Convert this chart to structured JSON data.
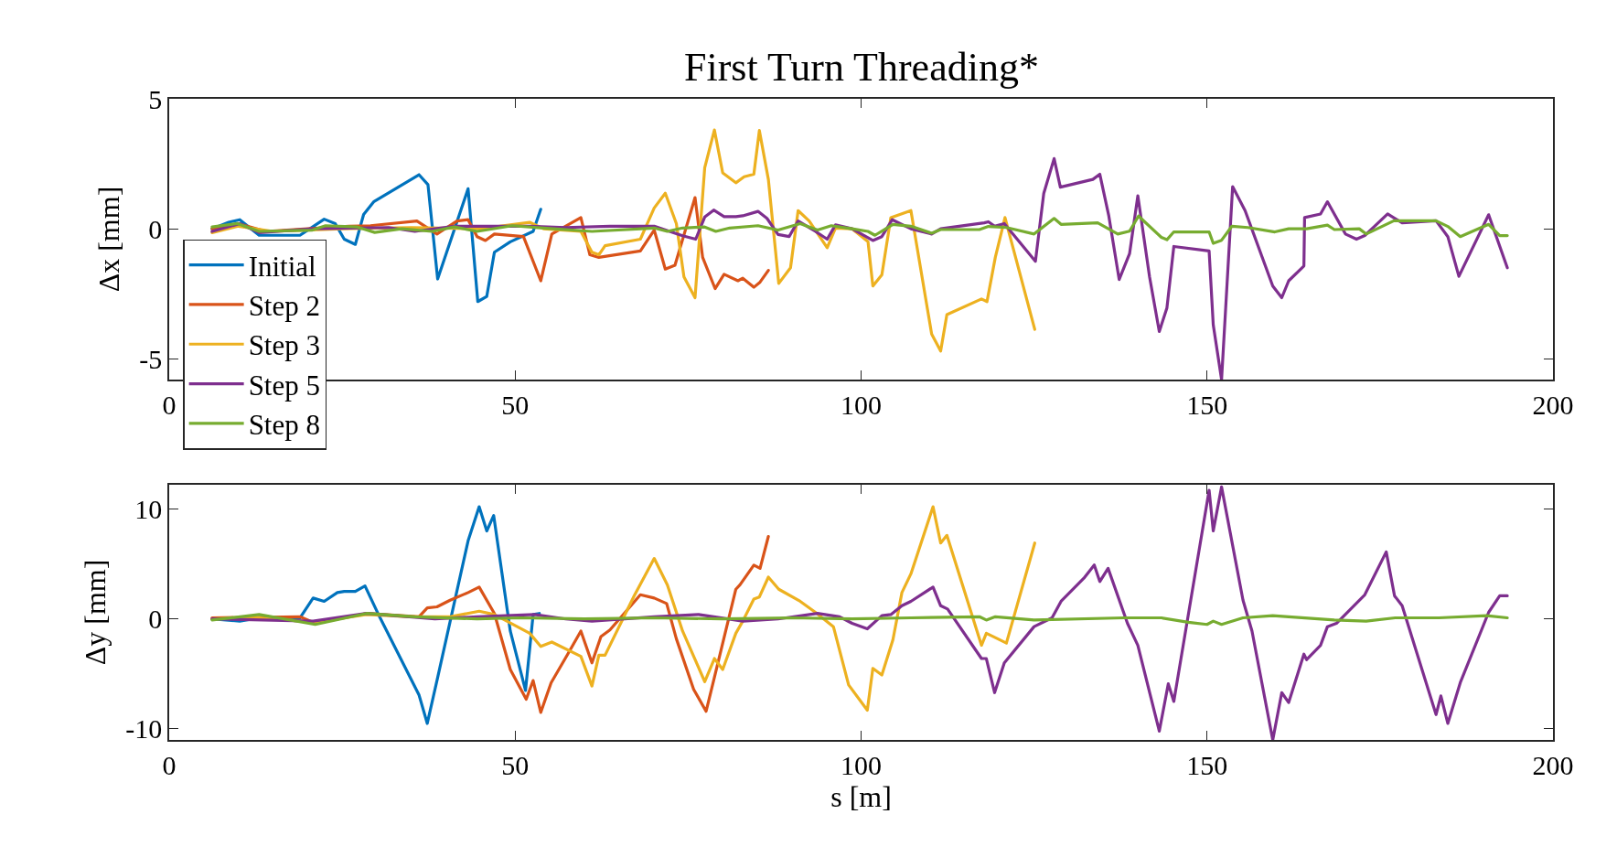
{
  "chart_data": [
    {
      "type": "line",
      "title": "First Turn Threading*",
      "ylabel": "Δx [mm]",
      "xlim": [
        0,
        200
      ],
      "xticks": [
        0,
        50,
        100,
        150,
        200
      ],
      "ylim": [
        -5.8,
        5
      ],
      "yticks": [
        -5,
        0,
        5
      ],
      "legend": "bottom left",
      "marker": "none",
      "line_style": "solid",
      "series": [
        {
          "name": "Initial",
          "color": "#0072bd",
          "x": [
            6.2,
            8.6,
            10.2,
            13,
            18.9,
            22.4,
            24,
            25.3,
            26.9,
            28.1,
            29.6,
            36.1,
            37.4,
            38.8,
            43.2,
            44.6,
            45.9,
            47,
            49.3,
            52.6,
            53.7
          ],
          "values": [
            0,
            0.25,
            0.35,
            -0.25,
            -0.25,
            0.37,
            0.2,
            -0.4,
            -0.6,
            0.55,
            1.05,
            2.08,
            1.7,
            -1.93,
            1.54,
            -2.8,
            -2.6,
            -0.9,
            -0.5,
            -0.1,
            0.75
          ]
        },
        {
          "name": "Step 2",
          "color": "#d95319",
          "x": [
            6.2,
            10,
            14,
            20,
            26,
            29.1,
            35.8,
            38.7,
            41.6,
            43.2,
            44.5,
            45.7,
            47,
            51.2,
            53.7,
            55.3,
            59.5,
            60.8,
            62.1,
            68.1,
            70.1,
            71.7,
            73.1,
            76,
            77.1,
            78.9,
            80.2,
            82.2,
            82.9,
            84.5,
            85.4,
            86.6
          ],
          "values": [
            0,
            0.2,
            -0.1,
            0,
            0.1,
            0.12,
            0.3,
            -0.2,
            0.3,
            0.35,
            -0.3,
            -0.45,
            -0.2,
            -0.3,
            -2,
            -0.2,
            0.43,
            -1,
            -1.1,
            -0.85,
            -0.05,
            -1.55,
            -1.4,
            1.2,
            -1.1,
            -2.3,
            -1.75,
            -2,
            -1.9,
            -2.25,
            -2.05,
            -1.6
          ]
        },
        {
          "name": "Step 3",
          "color": "#edb120",
          "x": [
            6.2,
            10,
            15,
            25,
            35,
            45,
            52.1,
            54.1,
            59.5,
            61.1,
            62.1,
            63,
            68.1,
            70.1,
            71.7,
            73.3,
            74.4,
            76,
            77.4,
            78.8,
            80,
            81.9,
            83.1,
            84.5,
            85.3,
            86.6,
            88.1,
            89.8,
            90.9,
            92.5,
            95.1,
            96.3,
            98.7,
            101,
            101.7,
            103,
            104.3,
            107.2,
            110.2,
            111.5,
            112.4,
            117.4,
            118.2,
            119.4,
            120.8,
            125.1
          ],
          "values": [
            -0.15,
            0.1,
            -0.1,
            0,
            0.05,
            0,
            0.25,
            0,
            -0.1,
            -0.9,
            -1,
            -0.65,
            -0.4,
            0.8,
            1.37,
            0.2,
            -1.85,
            -2.65,
            2.35,
            3.8,
            2.15,
            1.77,
            2,
            2.1,
            3.78,
            1.9,
            -2.1,
            -1.5,
            0.7,
            0.3,
            -0.73,
            0.03,
            0,
            -0.5,
            -2.2,
            -1.77,
            0.43,
            0.7,
            -4.05,
            -4.7,
            -3.3,
            -2.7,
            -2.8,
            -1.1,
            0.43,
            -3.87
          ]
        },
        {
          "name": "Step 5",
          "color": "#7e2f8e",
          "x": [
            6.2,
            10.2,
            13,
            20.7,
            31.7,
            35.5,
            41.2,
            52.1,
            57.3,
            63.7,
            70.1,
            74.2,
            76.1,
            77.4,
            78.7,
            80.2,
            81.9,
            82.9,
            85.1,
            86.4,
            88,
            89.6,
            90.9,
            93.4,
            95.1,
            96.3,
            98.7,
            101.7,
            103,
            104.5,
            107.2,
            110.2,
            111.5,
            117.8,
            118.4,
            119.3,
            120.7,
            125.2,
            126.4,
            127.9,
            128.8,
            133.5,
            134.5,
            135.8,
            137.3,
            138.8,
            140,
            141.7,
            143.1,
            144.2,
            145.2,
            150.3,
            150.9,
            152.1,
            153.7,
            155.5,
            159.5,
            160.8,
            161.8,
            164,
            164.1,
            166.4,
            167.4,
            170,
            171.6,
            172.8,
            176.1,
            178.2,
            183.1,
            184.8,
            186.4,
            190.7,
            193.4
          ],
          "values": [
            -0.1,
            0.2,
            -0.15,
            0,
            0.05,
            -0.1,
            0.1,
            0.1,
            0.05,
            0.1,
            0.1,
            -0.27,
            -0.4,
            0.45,
            0.72,
            0.47,
            0.47,
            0.5,
            0.67,
            0.4,
            -0.22,
            -0.3,
            0.3,
            -0.1,
            -0.4,
            0.15,
            0,
            -0.45,
            -0.3,
            0.35,
            0,
            -0.2,
            0,
            0.23,
            0.27,
            0.1,
            0.2,
            -1.25,
            1.36,
            2.7,
            1.6,
            1.9,
            2.1,
            0.5,
            -1.95,
            -0.96,
            1.27,
            -1.86,
            -3.95,
            -3.05,
            -0.68,
            -0.85,
            -3.7,
            -5.8,
            1.62,
            0.7,
            -2.2,
            -2.65,
            -2,
            -1.43,
            0.43,
            0.57,
            1.04,
            -0.2,
            -0.4,
            -0.26,
            0.57,
            0.23,
            0.31,
            -0.3,
            -1.83,
            0.54,
            -1.5
          ]
        },
        {
          "name": "Step 8",
          "color": "#77ac30",
          "x": [
            6.2,
            9.9,
            13,
            20.7,
            22.6,
            27.2,
            29.7,
            33.6,
            38,
            41.2,
            44.5,
            49.6,
            54.1,
            61.1,
            70.1,
            72,
            74.2,
            77.4,
            79,
            81,
            85.1,
            88,
            91.2,
            93.7,
            95.7,
            98.7,
            101,
            102,
            104.6,
            107.2,
            110.2,
            111.5,
            117.1,
            118.4,
            121,
            125,
            127.9,
            128.9,
            134.2,
            137.1,
            138.8,
            140.1,
            143.4,
            144.2,
            145.2,
            150.3,
            150.9,
            152.1,
            153.6,
            155.9,
            159.8,
            161.8,
            164.4,
            167.4,
            168.4,
            172,
            173,
            177,
            183.1,
            184.8,
            186.6,
            190.7,
            192.3,
            193.4
          ],
          "values": [
            0.07,
            0.2,
            -0.1,
            -0.05,
            0.12,
            0.07,
            -0.14,
            0,
            -0.1,
            0.07,
            -0.1,
            0.12,
            0.03,
            -0.1,
            0.03,
            -0.1,
            0.03,
            0.07,
            -0.1,
            0.03,
            0.12,
            -0.05,
            0.2,
            -0.05,
            0.12,
            0,
            -0.1,
            -0.25,
            0.17,
            0.1,
            -0.17,
            -0.03,
            -0.03,
            0.09,
            0.05,
            -0.2,
            0.4,
            0.17,
            0.23,
            -0.2,
            -0.09,
            0.49,
            -0.33,
            -0.42,
            -0.12,
            -0.12,
            -0.56,
            -0.44,
            0.1,
            0.05,
            -0.12,
            0,
            0,
            0.14,
            -0.03,
            0,
            -0.2,
            0.31,
            0.31,
            0.09,
            -0.3,
            0.17,
            -0.26,
            -0.26
          ]
        }
      ]
    },
    {
      "type": "line",
      "xlabel": "s [m]",
      "ylabel": "Δy [mm]",
      "xlim": [
        0,
        200
      ],
      "xticks": [
        0,
        50,
        100,
        150,
        200
      ],
      "ylim": [
        -11,
        12.2
      ],
      "yticks": [
        -10,
        0,
        10
      ],
      "marker": "none",
      "line_style": "solid",
      "series": [
        {
          "color": "#0072bd",
          "x": [
            6.2,
            10.2,
            13,
            18.9,
            20.8,
            22.4,
            24.3,
            25.3,
            26.9,
            28.3,
            30.4,
            36.1,
            37.3,
            38.7,
            43.2,
            44.8,
            45.9,
            46.9,
            49.3,
            51.5,
            52.6,
            53.5
          ],
          "values": [
            0,
            -0.2,
            0.1,
            0.1,
            1.9,
            1.6,
            2.4,
            2.5,
            2.5,
            3,
            0.2,
            -6.9,
            -9.5,
            -5.6,
            7.1,
            10.2,
            8,
            9.4,
            -1.1,
            -6.5,
            0.4,
            0.5
          ]
        },
        {
          "color": "#d95319",
          "x": [
            6.2,
            18.9,
            21.1,
            28.5,
            36.1,
            37.3,
            38.7,
            40.6,
            43.2,
            44.8,
            47,
            49.3,
            51.6,
            52.6,
            53.7,
            55.2,
            57.6,
            59.5,
            61.1,
            62.4,
            63.7,
            68.1,
            70.1,
            71.9,
            73.3,
            75.8,
            77.6,
            79,
            81.9,
            82.5,
            84.5,
            85.4,
            86.6
          ],
          "values": [
            0.1,
            0.2,
            -0.4,
            0.5,
            0.2,
            1,
            1.1,
            1.7,
            2.4,
            2.9,
            0.5,
            -4.6,
            -7.3,
            -5.6,
            -8.5,
            -5.8,
            -3.2,
            -1.1,
            -4,
            -1.6,
            -1,
            2.2,
            1.9,
            1.4,
            -1.8,
            -6.4,
            -8.4,
            -4.8,
            2.7,
            3.1,
            4.9,
            4.6,
            7.5
          ]
        },
        {
          "color": "#edb120",
          "x": [
            6.2,
            13,
            21.1,
            28.5,
            35,
            40.6,
            44.8,
            47,
            52.1,
            53.7,
            55.3,
            59.5,
            61.1,
            62.1,
            63,
            67.2,
            70.1,
            72,
            74.2,
            77.4,
            78.8,
            80,
            81.9,
            82.9,
            84.5,
            85.3,
            86.6,
            88.1,
            91.2,
            93.4,
            96,
            98.2,
            100.9,
            101.7,
            103,
            104.6,
            105.9,
            107.2,
            110.4,
            111.5,
            112.4,
            117.4,
            118.1,
            119.4,
            121,
            125.1
          ],
          "values": [
            0,
            0.1,
            -0.3,
            0.4,
            0.2,
            0.2,
            0.7,
            0.4,
            -1.3,
            -2.5,
            -2.1,
            -3.4,
            -6.1,
            -3.3,
            -3.3,
            2.1,
            5.5,
            3.1,
            -1.1,
            -5.7,
            -3.6,
            -4.6,
            -1.3,
            -0.2,
            1.8,
            2,
            3.8,
            2.7,
            1.6,
            0.6,
            -0.7,
            -6,
            -8.3,
            -4.5,
            -5.1,
            -1.9,
            2.4,
            4.1,
            10.2,
            6.9,
            7.6,
            -2.4,
            -1.3,
            -1.7,
            -2.2,
            6.9
          ]
        },
        {
          "color": "#7e2f8e",
          "x": [
            6.2,
            20.8,
            28.5,
            38.4,
            44.5,
            52.8,
            57.3,
            61.1,
            70.1,
            76.5,
            82.9,
            88,
            93.7,
            96.9,
            98.7,
            100.9,
            103,
            104.3,
            105.9,
            107.2,
            110.4,
            111.5,
            112.5,
            117.4,
            118.1,
            119.3,
            120.7,
            125,
            127.6,
            128.9,
            132.2,
            133.7,
            134.5,
            135.7,
            138.5,
            140,
            143.1,
            144.4,
            145.2,
            150.3,
            150.9,
            152.1,
            155.2,
            156.5,
            159.5,
            160.8,
            161.8,
            164,
            164.4,
            166.4,
            167.4,
            168.7,
            172.8,
            175.9,
            177.1,
            178.2,
            183.1,
            183.8,
            184.8,
            186.6,
            190.7,
            192.3,
            193.4
          ],
          "values": [
            0,
            -0.2,
            0.5,
            0,
            0.2,
            0.4,
            0,
            -0.2,
            0.2,
            0.4,
            -0.2,
            0,
            0.5,
            0.2,
            -0.4,
            -0.9,
            0.3,
            0.4,
            1.2,
            1.6,
            2.9,
            1.2,
            0.9,
            -3.6,
            -3.6,
            -6.7,
            -4,
            -0.7,
            0.1,
            1.6,
            3.7,
            4.9,
            3.4,
            4.6,
            -0.4,
            -2.4,
            -10.2,
            -5.9,
            -7.5,
            11.7,
            8,
            12,
            1.7,
            -1.1,
            -11,
            -6.7,
            -7.6,
            -3.2,
            -3.7,
            -2.4,
            -0.7,
            -0.4,
            2.2,
            6.1,
            2.1,
            1.2,
            -8.7,
            -7,
            -9.5,
            -5.8,
            0.6,
            2.1,
            2.1
          ]
        },
        {
          "color": "#77ac30",
          "x": [
            6.2,
            13,
            21.1,
            28.5,
            35.5,
            44.5,
            50.9,
            60,
            70,
            80,
            90,
            98.7,
            107.2,
            117.1,
            118.1,
            119.4,
            125,
            138,
            143.4,
            147.3,
            150,
            150.9,
            152.1,
            155.2,
            159.5,
            161.8,
            168.4,
            173,
            177.2,
            183.5,
            190.4,
            193.4
          ],
          "values": [
            -0.1,
            0.4,
            -0.5,
            0.5,
            0.2,
            0,
            0.1,
            0,
            0.1,
            0,
            0.1,
            0,
            0.1,
            0.2,
            -0.1,
            0.2,
            -0.1,
            0.1,
            0.1,
            -0.3,
            -0.5,
            -0.2,
            -0.5,
            0.1,
            0.3,
            0.2,
            -0.1,
            -0.2,
            0.1,
            0.1,
            0.3,
            0.1
          ]
        }
      ]
    }
  ]
}
